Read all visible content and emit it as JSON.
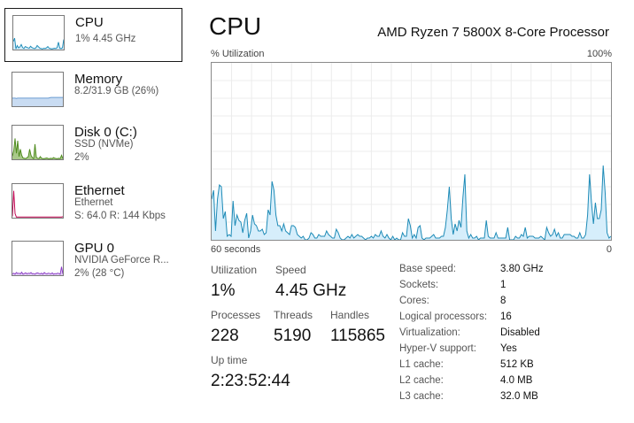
{
  "colors": {
    "cpu_stroke": "#1e8bb7",
    "cpu_fill": "#d6eefb",
    "memory": "#6a9bd1",
    "disk": "#4d8a1c",
    "ethernet": "#c0004f",
    "gpu": "#8a3bc6"
  },
  "sidebar": {
    "items": [
      {
        "title": "CPU",
        "lines": [
          "1%  4.45 GHz"
        ],
        "icon": "cpu-graph-icon"
      },
      {
        "title": "Memory",
        "lines": [
          "8.2/31.9 GB (26%)"
        ],
        "icon": "memory-graph-icon"
      },
      {
        "title": "Disk 0 (C:)",
        "lines": [
          "SSD (NVMe)",
          "2%"
        ],
        "icon": "disk-graph-icon"
      },
      {
        "title": "Ethernet",
        "lines": [
          "Ethernet",
          "S: 64.0  R: 144 Kbps"
        ],
        "icon": "ethernet-graph-icon"
      },
      {
        "title": "GPU 0",
        "lines": [
          "NVIDIA GeForce R...",
          "2%  (28 °C)"
        ],
        "icon": "gpu-graph-icon"
      }
    ]
  },
  "header": {
    "title": "CPU",
    "processor": "AMD Ryzen 7 5800X 8-Core Processor"
  },
  "graph": {
    "y_label": "% Utilization",
    "y_max_label": "100%",
    "x_left_label": "60 seconds",
    "x_right_label": "0",
    "cpu_series": [
      23,
      28,
      5,
      23,
      31,
      30,
      12,
      16,
      2,
      3,
      2,
      22,
      8,
      14,
      11,
      10,
      4,
      11,
      15,
      1,
      5,
      14,
      9,
      8,
      5,
      5,
      6,
      3,
      4,
      17,
      14,
      33,
      28,
      14,
      8,
      8,
      5,
      9,
      5,
      4,
      3,
      8,
      8,
      7,
      3,
      2,
      1,
      2,
      0,
      0,
      1,
      4,
      3,
      1,
      1,
      3,
      2,
      2,
      2,
      5,
      3,
      2,
      1,
      1,
      6,
      4,
      1,
      0,
      0,
      1,
      2,
      1,
      3,
      1,
      2,
      3,
      2,
      2,
      1,
      0,
      1,
      1,
      2,
      1,
      3,
      2,
      2,
      5,
      2,
      1,
      3,
      1,
      0,
      2,
      0,
      1,
      0,
      0,
      4,
      2,
      2,
      12,
      8,
      1,
      3,
      1,
      7,
      8,
      1,
      0,
      1,
      1,
      1,
      2,
      3,
      1,
      1,
      1,
      2,
      2,
      7,
      17,
      30,
      12,
      3,
      9,
      5,
      11,
      7,
      24,
      37,
      5,
      1,
      3,
      1,
      1,
      2,
      0,
      1,
      1,
      1,
      11,
      2,
      1,
      1,
      1,
      4,
      1,
      1,
      1,
      1,
      1,
      7,
      0,
      0,
      0,
      2,
      1,
      1,
      3,
      2,
      7,
      1,
      2,
      2,
      2,
      1,
      1,
      1,
      2,
      1,
      0,
      7,
      4,
      2,
      3,
      6,
      2,
      4,
      1,
      1,
      3,
      3,
      3,
      3,
      2,
      2,
      1,
      1,
      4,
      1,
      1,
      3,
      14,
      37,
      21,
      9,
      21,
      12,
      12,
      17,
      42,
      27,
      4,
      1,
      2
    ]
  },
  "thumbs": {
    "cpu": [
      24,
      34,
      2,
      12,
      5,
      8,
      15,
      6,
      3,
      9,
      7,
      5,
      4,
      10,
      6,
      4,
      3,
      5,
      12,
      8,
      4,
      3,
      2,
      4,
      3,
      5,
      9,
      4,
      3,
      2,
      3,
      4,
      3,
      6,
      22,
      4,
      3,
      5,
      30
    ],
    "memory": [
      24,
      24,
      24,
      23,
      24,
      24,
      24,
      24,
      24,
      24,
      24,
      24,
      24,
      24,
      24,
      24,
      24,
      24,
      24,
      24,
      24,
      24,
      24,
      24,
      24,
      24,
      24,
      24,
      25,
      26,
      26,
      26,
      26,
      26,
      26,
      26,
      26,
      26,
      26
    ],
    "disk": [
      10,
      25,
      62,
      18,
      55,
      8,
      30,
      12,
      4,
      3,
      2,
      5,
      8,
      30,
      12,
      5,
      2,
      45,
      6,
      3,
      2,
      8,
      3,
      2,
      2,
      3,
      4,
      2,
      2,
      3,
      2,
      5,
      3,
      2,
      2,
      3,
      2,
      12,
      2
    ],
    "ethernet": [
      4,
      80,
      12,
      2,
      2,
      2,
      2,
      2,
      2,
      2,
      2,
      2,
      2,
      2,
      2,
      2,
      2,
      2,
      2,
      2,
      2,
      2,
      2,
      2,
      2,
      2,
      2,
      2,
      2,
      2,
      2,
      2,
      2,
      2,
      2,
      2,
      2,
      2,
      3
    ],
    "gpu": [
      4,
      6,
      3,
      8,
      5,
      6,
      4,
      9,
      3,
      5,
      7,
      4,
      6,
      5,
      8,
      4,
      5,
      3,
      6,
      7,
      5,
      4,
      6,
      3,
      8,
      5,
      4,
      6,
      5,
      4,
      7,
      3,
      5,
      4,
      6,
      5,
      3,
      25,
      4
    ]
  },
  "stats": {
    "utilization": {
      "label": "Utilization",
      "value": "1%"
    },
    "speed": {
      "label": "Speed",
      "value": "4.45 GHz"
    },
    "processes": {
      "label": "Processes",
      "value": "228"
    },
    "threads": {
      "label": "Threads",
      "value": "5190"
    },
    "handles": {
      "label": "Handles",
      "value": "115865"
    },
    "uptime": {
      "label": "Up time",
      "value": "2:23:52:44"
    }
  },
  "specs": [
    {
      "label": "Base speed:",
      "value": "3.80 GHz"
    },
    {
      "label": "Sockets:",
      "value": "1"
    },
    {
      "label": "Cores:",
      "value": "8"
    },
    {
      "label": "Logical processors:",
      "value": "16"
    },
    {
      "label": "Virtualization:",
      "value": "Disabled"
    },
    {
      "label": "Hyper-V support:",
      "value": "Yes"
    },
    {
      "label": "L1 cache:",
      "value": "512 KB"
    },
    {
      "label": "L2 cache:",
      "value": "4.0 MB"
    },
    {
      "label": "L3 cache:",
      "value": "32.0 MB"
    }
  ]
}
